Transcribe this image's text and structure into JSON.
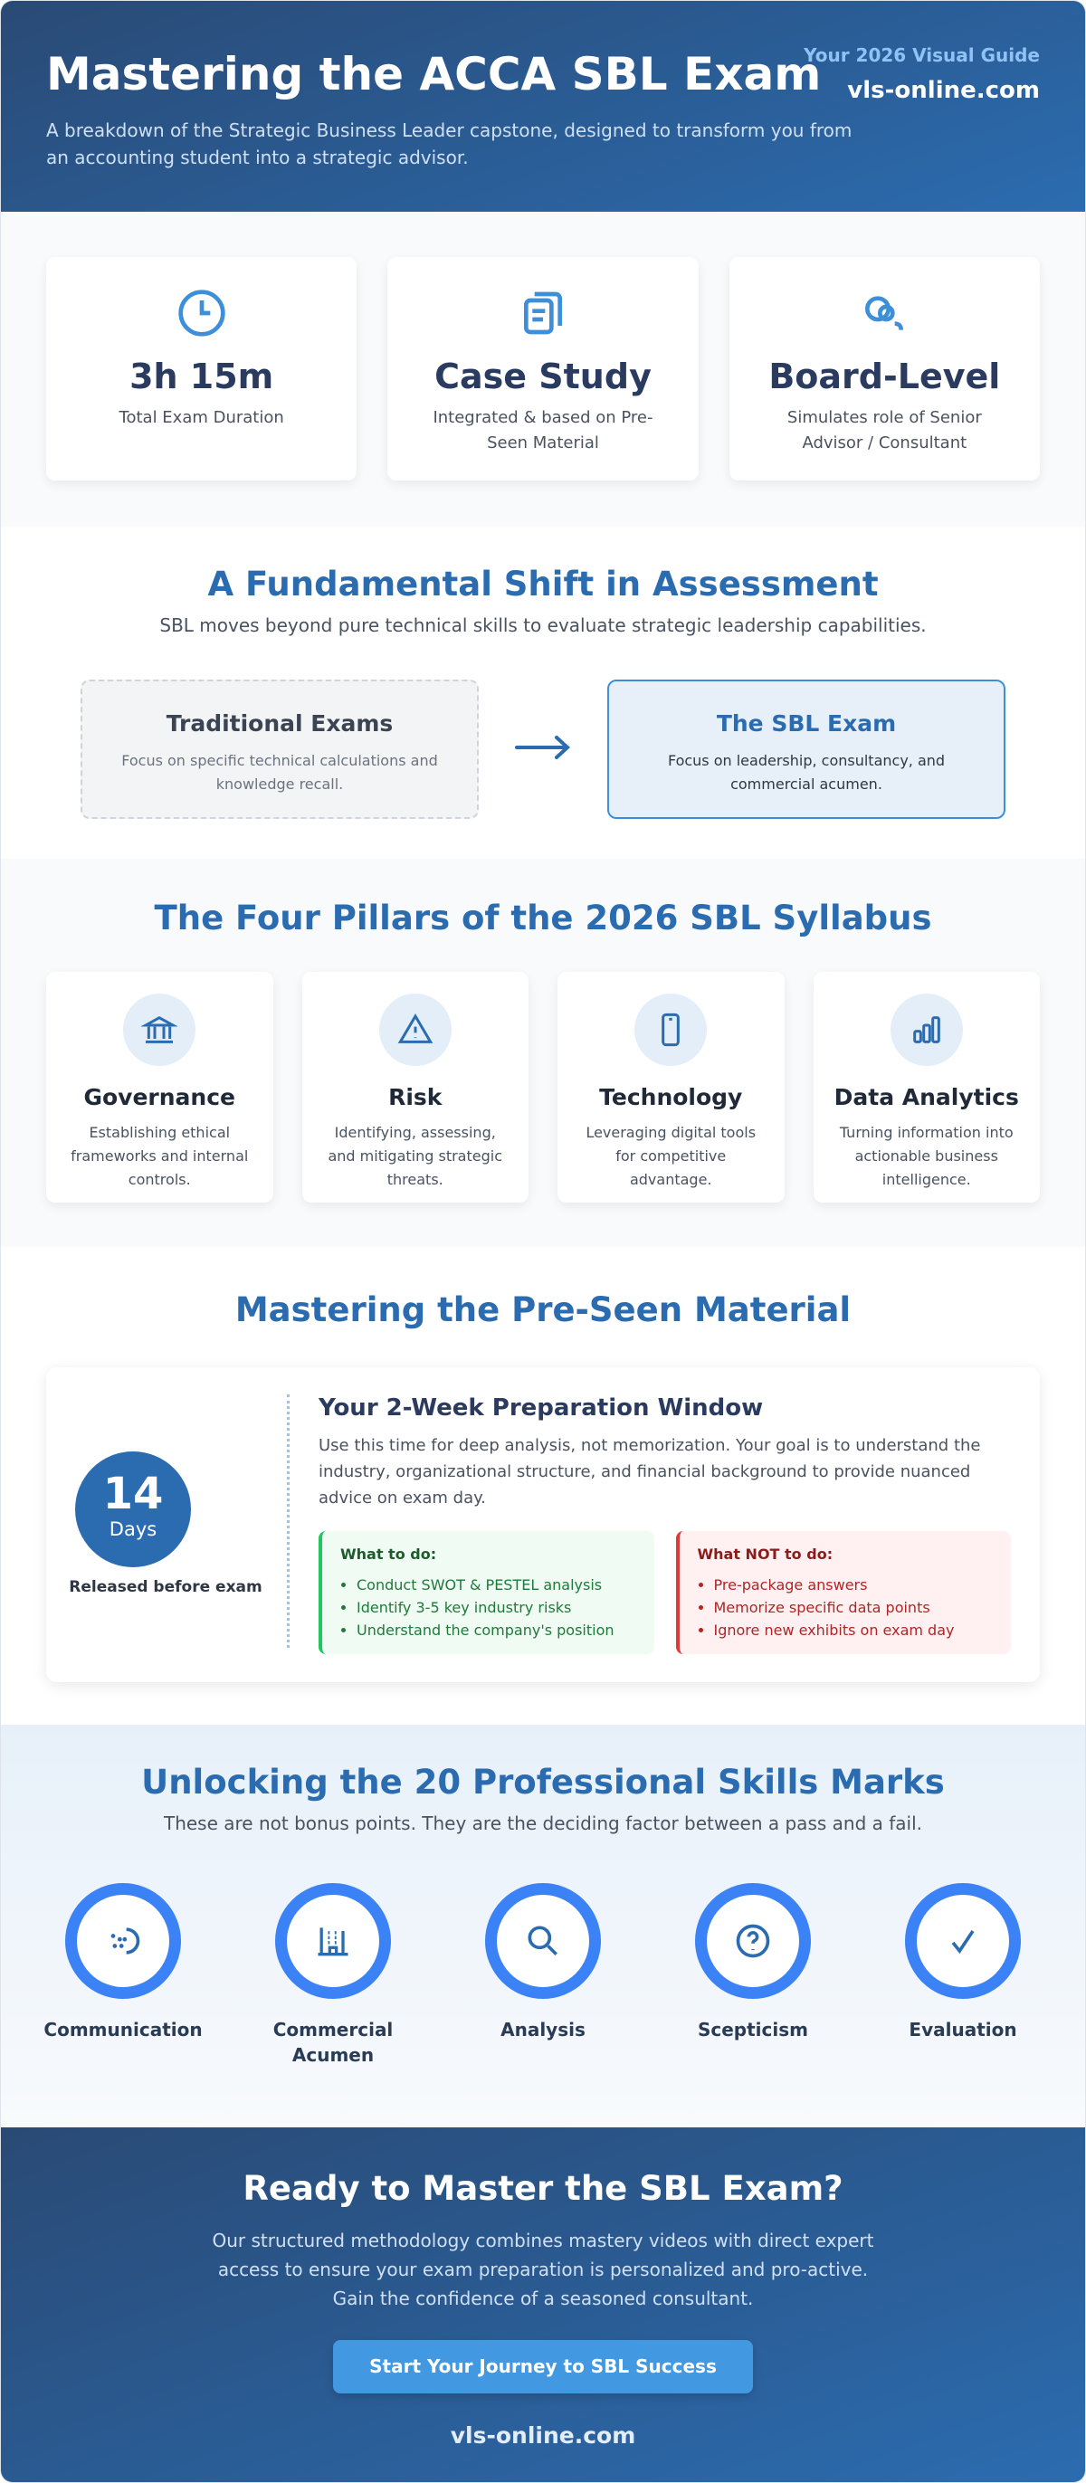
{
  "header": {
    "title": "Mastering the ACCA SBL Exam",
    "subtitle": "A breakdown of the Strategic Business Leader capstone, designed to transform you from an accounting student into a strategic advisor.",
    "guide": "Your 2026 Visual Guide",
    "site": "vls-online.com"
  },
  "stats": [
    {
      "icon": "clock-icon",
      "value": "3h 15m",
      "desc": "Total Exam Duration"
    },
    {
      "icon": "clipboard-icon",
      "value": "Case Study",
      "desc": "Integrated & based on Pre-Seen Material"
    },
    {
      "icon": "users-icon",
      "value": "Board-Level",
      "desc": "Simulates role of Senior Advisor / Consultant"
    }
  ],
  "shift": {
    "title": "A Fundamental Shift in Assessment",
    "lead": "SBL moves beyond pure technical skills to evaluate strategic leadership capabilities.",
    "old": {
      "title": "Traditional Exams",
      "desc": "Focus on specific technical calculations and knowledge recall."
    },
    "new": {
      "title": "The SBL Exam",
      "desc": "Focus on leadership, consultancy, and commercial acumen."
    }
  },
  "pillars": {
    "title": "The Four Pillars of the 2026 SBL Syllabus",
    "items": [
      {
        "icon": "bank-icon",
        "title": "Governance",
        "desc": "Establishing ethical frameworks and internal controls."
      },
      {
        "icon": "warning-icon",
        "title": "Risk",
        "desc": "Identifying, assessing, and mitigating strategic threats."
      },
      {
        "icon": "phone-icon",
        "title": "Technology",
        "desc": "Leveraging digital tools for competitive advantage."
      },
      {
        "icon": "bar-chart-icon",
        "title": "Data Analytics",
        "desc": "Turning information into actionable business intelligence."
      }
    ]
  },
  "preseen": {
    "title": "Mastering the Pre-Seen Material",
    "days": "14",
    "days_unit": "Days",
    "released": "Released before exam",
    "heading": "Your 2-Week Preparation Window",
    "text": "Use this time for deep analysis, not memorization. Your goal is to understand the industry, organizational structure, and financial background to provide nuanced advice on exam day.",
    "do": {
      "title": "What to do:",
      "items": [
        "Conduct SWOT & PESTEL analysis",
        "Identify 3-5 key industry risks",
        "Understand the company's position"
      ]
    },
    "dont": {
      "title": "What NOT to do:",
      "items": [
        "Pre-package answers",
        "Memorize specific data points",
        "Ignore new exhibits on exam day"
      ]
    }
  },
  "skills": {
    "title": "Unlocking the 20 Professional Skills Marks",
    "lead": "These are not bonus points. They are the deciding factor between a pass and a fail.",
    "items": [
      {
        "icon": "speech-icon",
        "label": "Communication"
      },
      {
        "icon": "building-icon",
        "label": "Commercial Acumen"
      },
      {
        "icon": "search-icon",
        "label": "Analysis"
      },
      {
        "icon": "question-icon",
        "label": "Scepticism"
      },
      {
        "icon": "check-icon",
        "label": "Evaluation"
      }
    ]
  },
  "cta": {
    "title": "Ready to Master the SBL Exam?",
    "text": "Our structured methodology combines mastery videos with direct expert access to ensure your exam preparation is personalized and pro-active. Gain the confidence of a seasoned consultant.",
    "button": "Start Your Journey to SBL Success",
    "site": "vls-online.com"
  },
  "colors": {
    "primary": "#2b6cb0",
    "accent": "#3b82f6",
    "do": "#22c55e",
    "dont": "#dc3b3b"
  }
}
